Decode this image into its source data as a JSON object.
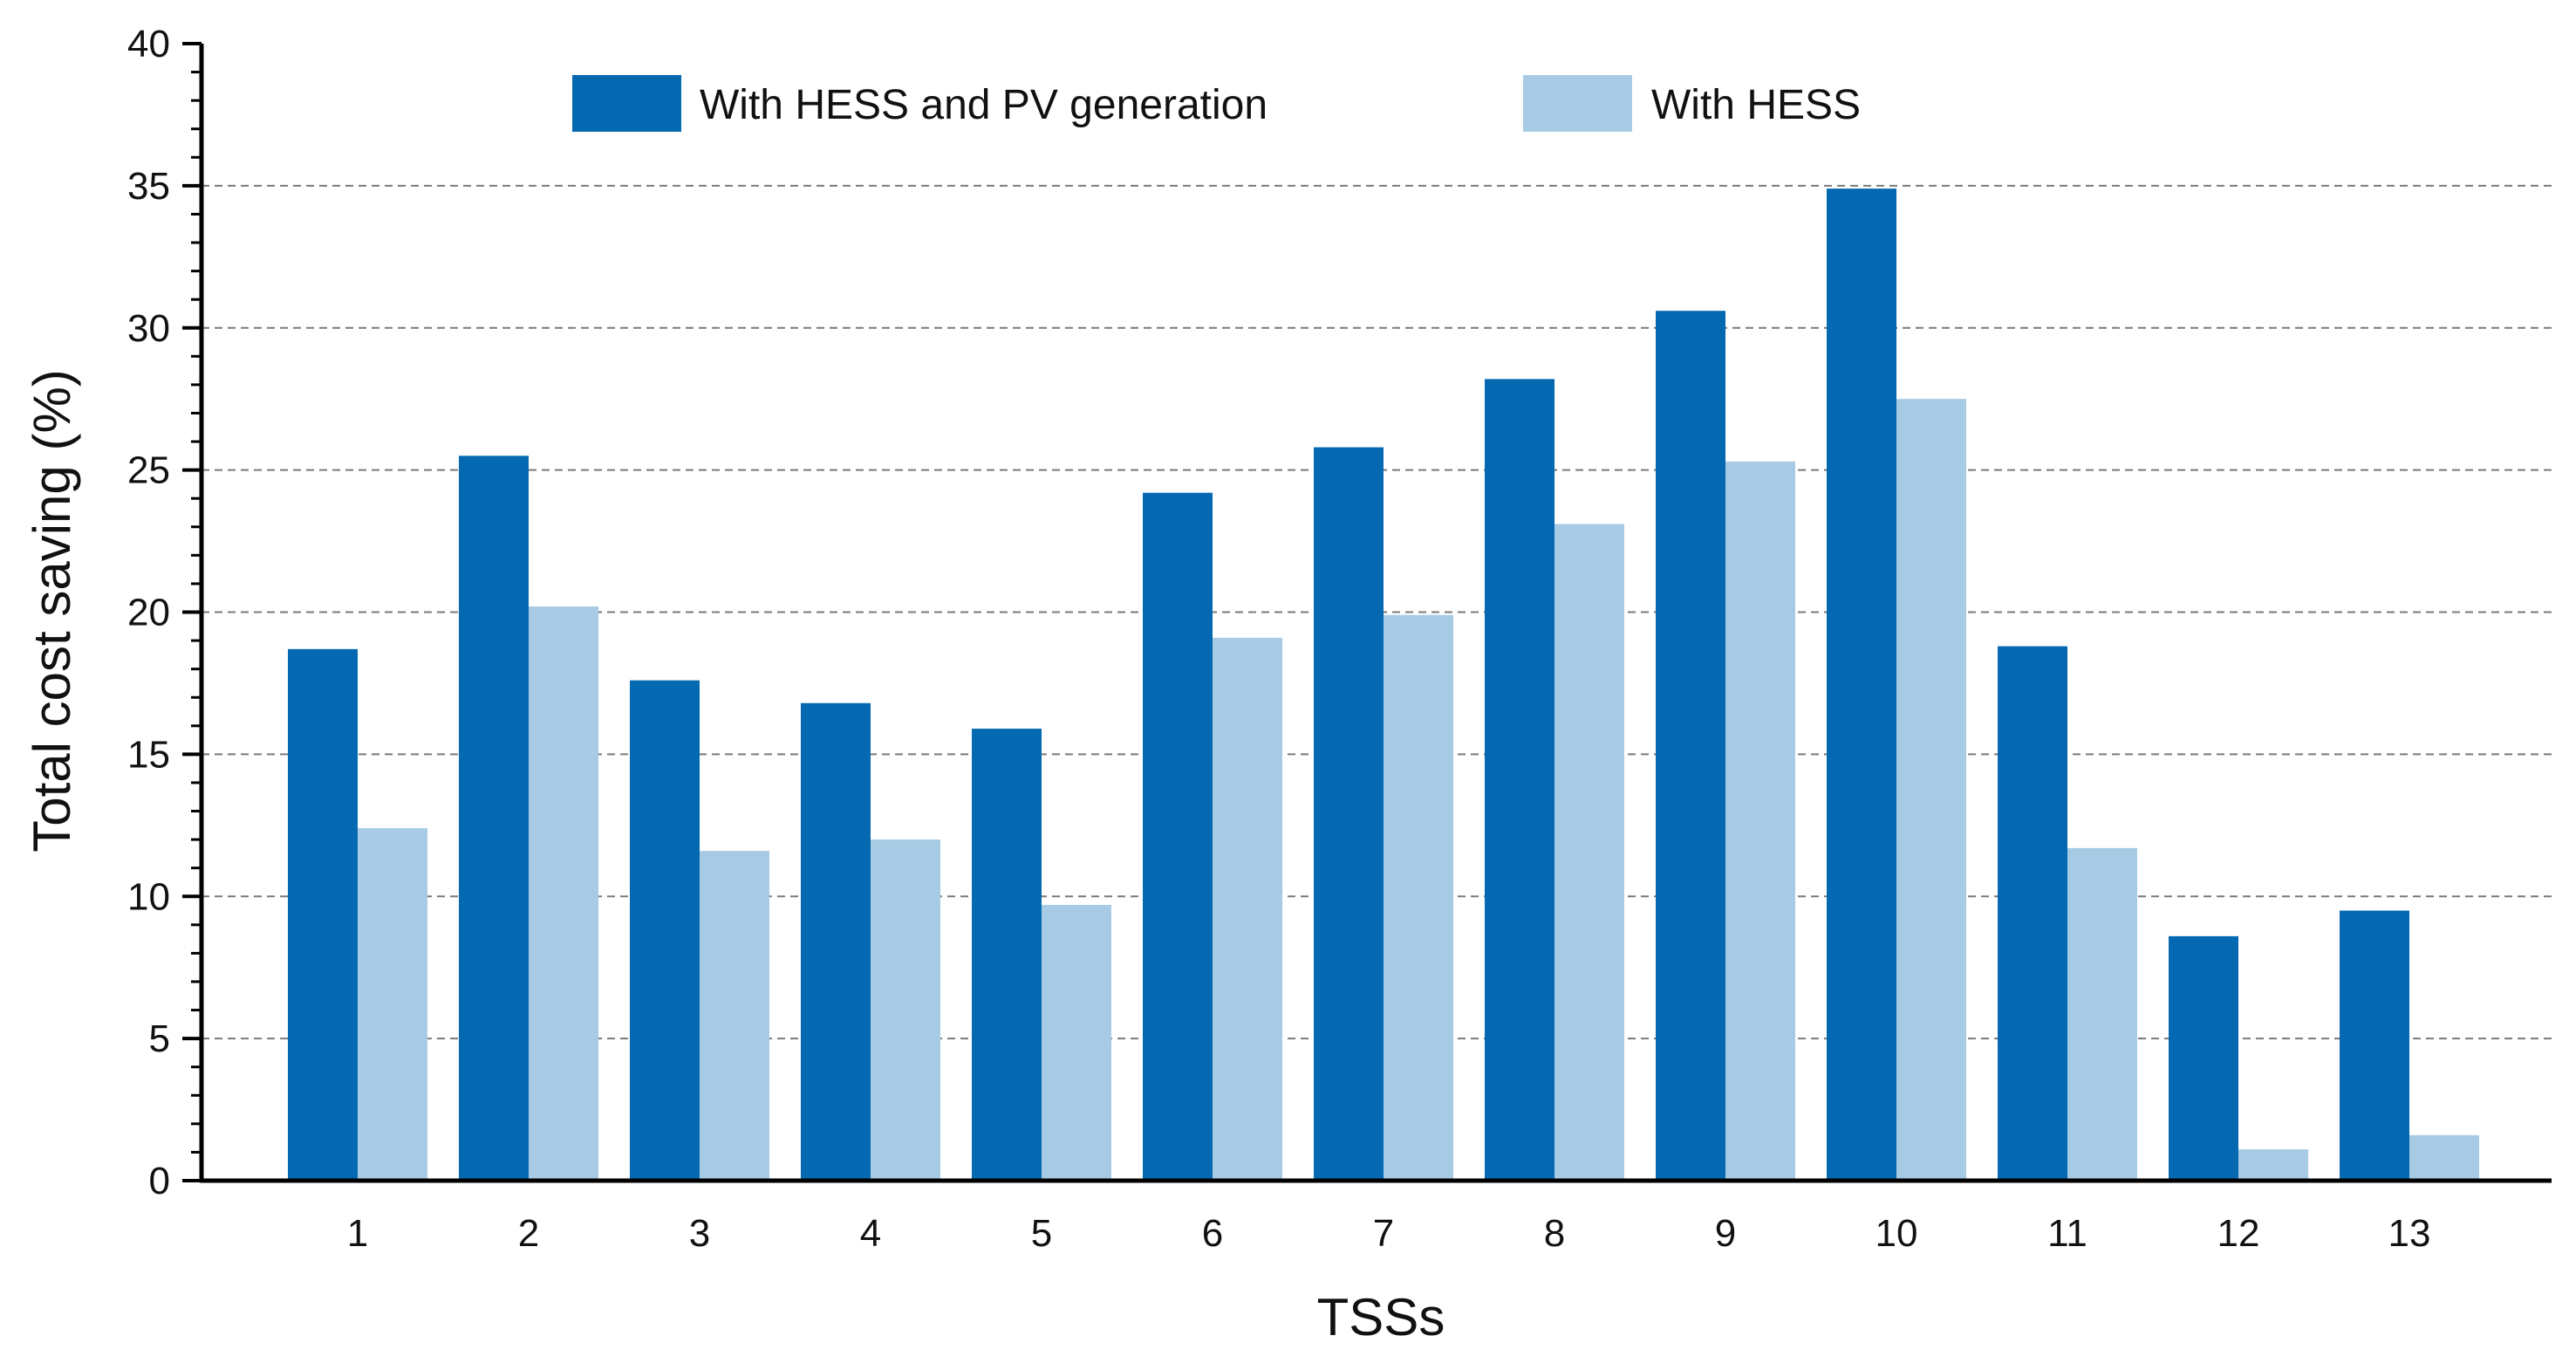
{
  "chart_data": {
    "type": "bar",
    "title": "",
    "xlabel": "TSSs",
    "ylabel": "Total cost saving (%)",
    "ylim": [
      0,
      40
    ],
    "yticks": [
      0,
      5,
      10,
      15,
      20,
      25,
      30,
      35,
      40
    ],
    "grid": "horizontal-dashed",
    "legend_position": "top-center",
    "categories": [
      "1",
      "2",
      "3",
      "4",
      "5",
      "6",
      "7",
      "8",
      "9",
      "10",
      "11",
      "12",
      "13"
    ],
    "series": [
      {
        "name": "With HESS and PV generation",
        "color": "#0569b1",
        "values": [
          18.7,
          25.5,
          17.6,
          16.8,
          15.9,
          24.2,
          25.8,
          28.2,
          30.6,
          34.9,
          18.8,
          8.6,
          9.5
        ]
      },
      {
        "name": "With HESS",
        "color": "#a7cbe5",
        "values": [
          12.4,
          20.2,
          11.6,
          12.0,
          9.7,
          19.1,
          19.9,
          23.1,
          25.3,
          27.5,
          11.7,
          1.1,
          1.6
        ]
      }
    ]
  }
}
